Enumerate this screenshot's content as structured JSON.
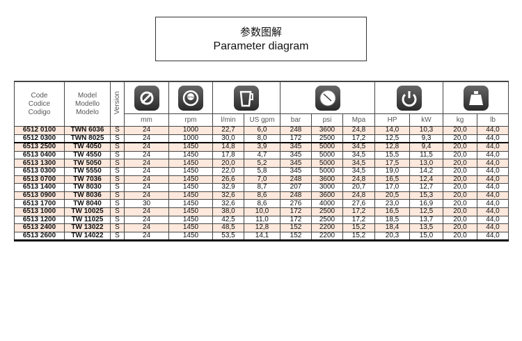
{
  "title": {
    "cn": "参数图解",
    "en": "Parameter diagram"
  },
  "headers": {
    "code": [
      "Code",
      "Codice",
      "Codigo"
    ],
    "model": [
      "Model",
      "Modello",
      "Modelo"
    ],
    "version": "Version"
  },
  "icons": [
    "diameter-icon",
    "rpm-icon",
    "flow-jug-icon",
    "pressure-gauge-icon",
    "power-icon",
    "weight-icon"
  ],
  "units": [
    "mm",
    "rpm",
    "l/min",
    "US gpm",
    "bar",
    "psi",
    "Mpa",
    "HP",
    "kW",
    "kg",
    "lb"
  ],
  "rows": [
    [
      "6512 0100",
      "TWN 6036",
      "S",
      "24",
      "1000",
      "22,7",
      "6,0",
      "248",
      "3600",
      "24,8",
      "14,0",
      "10,3",
      "20,0",
      "44,0"
    ],
    [
      "6512 0300",
      "TWN 8025",
      "S",
      "24",
      "1000",
      "30,0",
      "8,0",
      "172",
      "2500",
      "17,2",
      "12,5",
      "9,3",
      "20,0",
      "44,0"
    ],
    [
      "6513 2500",
      "TW 4050",
      "S",
      "24",
      "1450",
      "14,8",
      "3,9",
      "345",
      "5000",
      "34,5",
      "12,8",
      "9,4",
      "20,0",
      "44,0"
    ],
    [
      "6513 0400",
      "TW 4550",
      "S",
      "24",
      "1450",
      "17,8",
      "4,7",
      "345",
      "5000",
      "34,5",
      "15,5",
      "11,5",
      "20,0",
      "44,0"
    ],
    [
      "6513 1300",
      "TW 5050",
      "S",
      "24",
      "1450",
      "20,0",
      "5,2",
      "345",
      "5000",
      "34,5",
      "17,5",
      "13,0",
      "20,0",
      "44,0"
    ],
    [
      "6513 0300",
      "TW 5550",
      "S",
      "24",
      "1450",
      "22,0",
      "5,8",
      "345",
      "5000",
      "34,5",
      "19,0",
      "14,2",
      "20,0",
      "44,0"
    ],
    [
      "6513 0700",
      "TW 7036",
      "S",
      "24",
      "1450",
      "26,6",
      "7,0",
      "248",
      "3600",
      "24,8",
      "16,5",
      "12,4",
      "20,0",
      "44,0"
    ],
    [
      "6513 1400",
      "TW 8030",
      "S",
      "24",
      "1450",
      "32,9",
      "8,7",
      "207",
      "3000",
      "20,7",
      "17,0",
      "12,7",
      "20,0",
      "44,0"
    ],
    [
      "6513 0900",
      "TW 8036",
      "S",
      "24",
      "1450",
      "32,6",
      "8,6",
      "248",
      "3600",
      "24,8",
      "20,5",
      "15,3",
      "20,0",
      "44,0"
    ],
    [
      "6513 1700",
      "TW 8040",
      "S",
      "30",
      "1450",
      "32,6",
      "8,6",
      "276",
      "4000",
      "27,6",
      "23,0",
      "16,9",
      "20,0",
      "44,0"
    ],
    [
      "6513 1000",
      "TW 10025",
      "S",
      "24",
      "1450",
      "38,0",
      "10,0",
      "172",
      "2500",
      "17,2",
      "16,5",
      "12,5",
      "20,0",
      "44,0"
    ],
    [
      "6513 1200",
      "TW 11025",
      "S",
      "24",
      "1450",
      "42,5",
      "11,0",
      "172",
      "2500",
      "17,2",
      "18,5",
      "13,7",
      "20,0",
      "44,0"
    ],
    [
      "6513 2400",
      "TW 13022",
      "S",
      "24",
      "1450",
      "48,5",
      "12,8",
      "152",
      "2200",
      "15,2",
      "18,4",
      "13,5",
      "20,0",
      "44,0"
    ],
    [
      "6513 2600",
      "TW 14022",
      "S",
      "24",
      "1450",
      "53,5",
      "14,1",
      "152",
      "2200",
      "15,2",
      "20,3",
      "15,0",
      "20,0",
      "44,0"
    ]
  ]
}
